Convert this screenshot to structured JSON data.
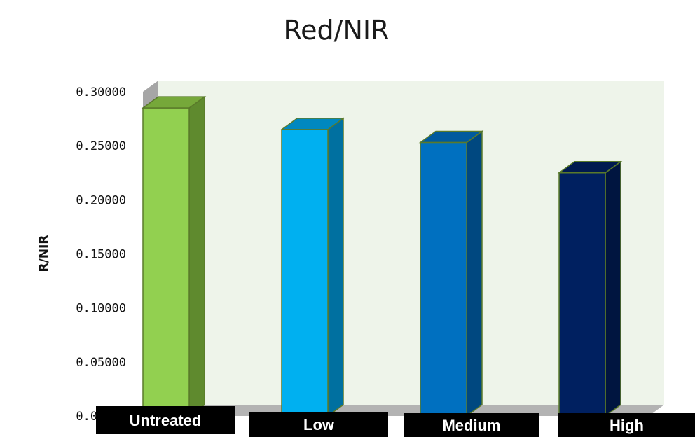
{
  "chart_data": {
    "type": "bar",
    "title": "Red/NIR",
    "ylabel": "R/NIR",
    "xlabel": "",
    "categories": [
      "Untreated",
      "Low",
      "Medium",
      "High"
    ],
    "values": [
      0.285,
      0.265,
      0.253,
      0.225
    ],
    "ylim": [
      0,
      0.3
    ],
    "yticks": [
      "0.00000",
      "0.05000",
      "0.10000",
      "0.15000",
      "0.20000",
      "0.25000",
      "0.30000"
    ],
    "grid": false,
    "legend": "none",
    "bar_colors": [
      {
        "front": "#92d050",
        "side": "#5f8a2e",
        "top": "#76a83a"
      },
      {
        "front": "#00b0f0",
        "side": "#0070a0",
        "top": "#0088c0"
      },
      {
        "front": "#0070c0",
        "side": "#004880",
        "top": "#005a9e"
      },
      {
        "front": "#002060",
        "side": "#001540",
        "top": "#001a4f"
      }
    ],
    "plot_background": "#eef4ea"
  }
}
